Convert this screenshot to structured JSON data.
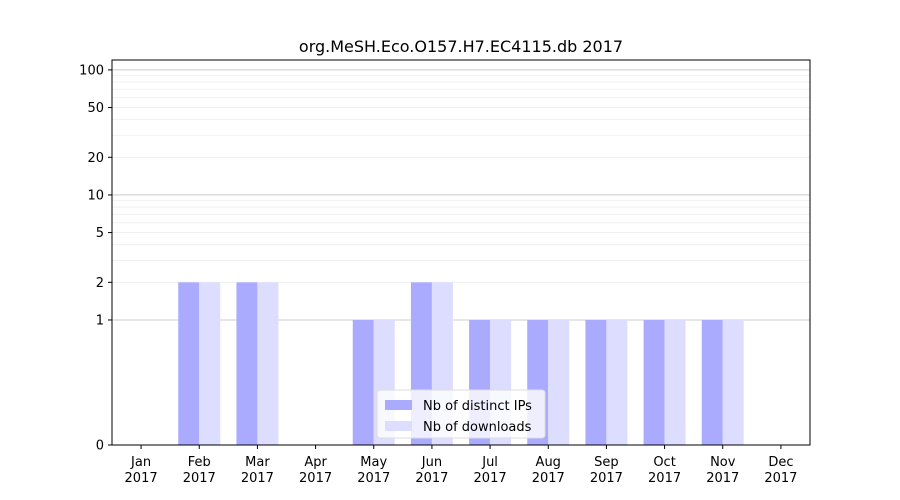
{
  "chart_data": {
    "type": "bar",
    "title": "org.MeSH.Eco.O157.H7.EC4115.db 2017",
    "xlabel": "",
    "ylabel": "",
    "y_scale": "symlog",
    "ylim": [
      0,
      120
    ],
    "yticks": [
      0,
      1,
      2,
      5,
      10,
      20,
      50,
      100
    ],
    "categories": [
      {
        "month": "Jan",
        "year": "2017"
      },
      {
        "month": "Feb",
        "year": "2017"
      },
      {
        "month": "Mar",
        "year": "2017"
      },
      {
        "month": "Apr",
        "year": "2017"
      },
      {
        "month": "May",
        "year": "2017"
      },
      {
        "month": "Jun",
        "year": "2017"
      },
      {
        "month": "Jul",
        "year": "2017"
      },
      {
        "month": "Aug",
        "year": "2017"
      },
      {
        "month": "Sep",
        "year": "2017"
      },
      {
        "month": "Oct",
        "year": "2017"
      },
      {
        "month": "Nov",
        "year": "2017"
      },
      {
        "month": "Dec",
        "year": "2017"
      }
    ],
    "series": [
      {
        "name": "Nb of distinct IPs",
        "color": "#aaaaff",
        "values": [
          0,
          2,
          2,
          0,
          1,
          2,
          1,
          1,
          1,
          1,
          1,
          0
        ]
      },
      {
        "name": "Nb of downloads",
        "color": "#ddddff",
        "values": [
          0,
          2,
          2,
          0,
          1,
          2,
          1,
          1,
          1,
          1,
          1,
          0
        ]
      }
    ],
    "legend_position": "lower-center",
    "grid": true
  }
}
